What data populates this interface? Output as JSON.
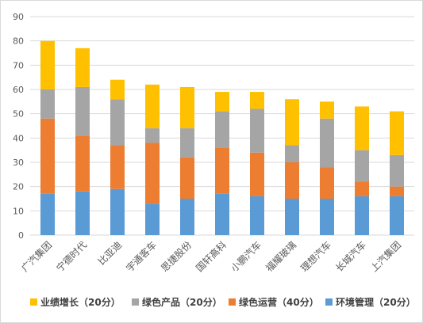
{
  "chart_data": {
    "type": "bar",
    "stacked": true,
    "title": "",
    "xlabel": "",
    "ylabel": "",
    "ylim": [
      0,
      90
    ],
    "ytick_step": 10,
    "grid": true,
    "legend_position": "bottom",
    "categories": [
      "广汽集团",
      "宁德时代",
      "比亚迪",
      "宇通客车",
      "思捷股份",
      "国轩高科",
      "小鹏汽车",
      "福耀玻璃",
      "理想汽车",
      "长城汽车",
      "上汽集团"
    ],
    "series": [
      {
        "name": "环境管理（20分）",
        "color": "#5b9bd5",
        "values": [
          17,
          18,
          19,
          13,
          15,
          17,
          16,
          15,
          15,
          16,
          16
        ]
      },
      {
        "name": "绿色运营（40分）",
        "color": "#ed7d31",
        "values": [
          31,
          23,
          18,
          25,
          17,
          19,
          18,
          15,
          13,
          6,
          4
        ]
      },
      {
        "name": "绿色产品（20分）",
        "color": "#a5a5a5",
        "values": [
          12,
          20,
          19,
          6,
          12,
          15,
          18,
          7,
          20,
          13,
          13
        ]
      },
      {
        "name": "业绩增长（20分）",
        "color": "#ffc000",
        "values": [
          20,
          16,
          8,
          18,
          17,
          8,
          7,
          19,
          7,
          18,
          18
        ]
      }
    ],
    "legend_order": [
      3,
      2,
      1,
      0
    ]
  }
}
